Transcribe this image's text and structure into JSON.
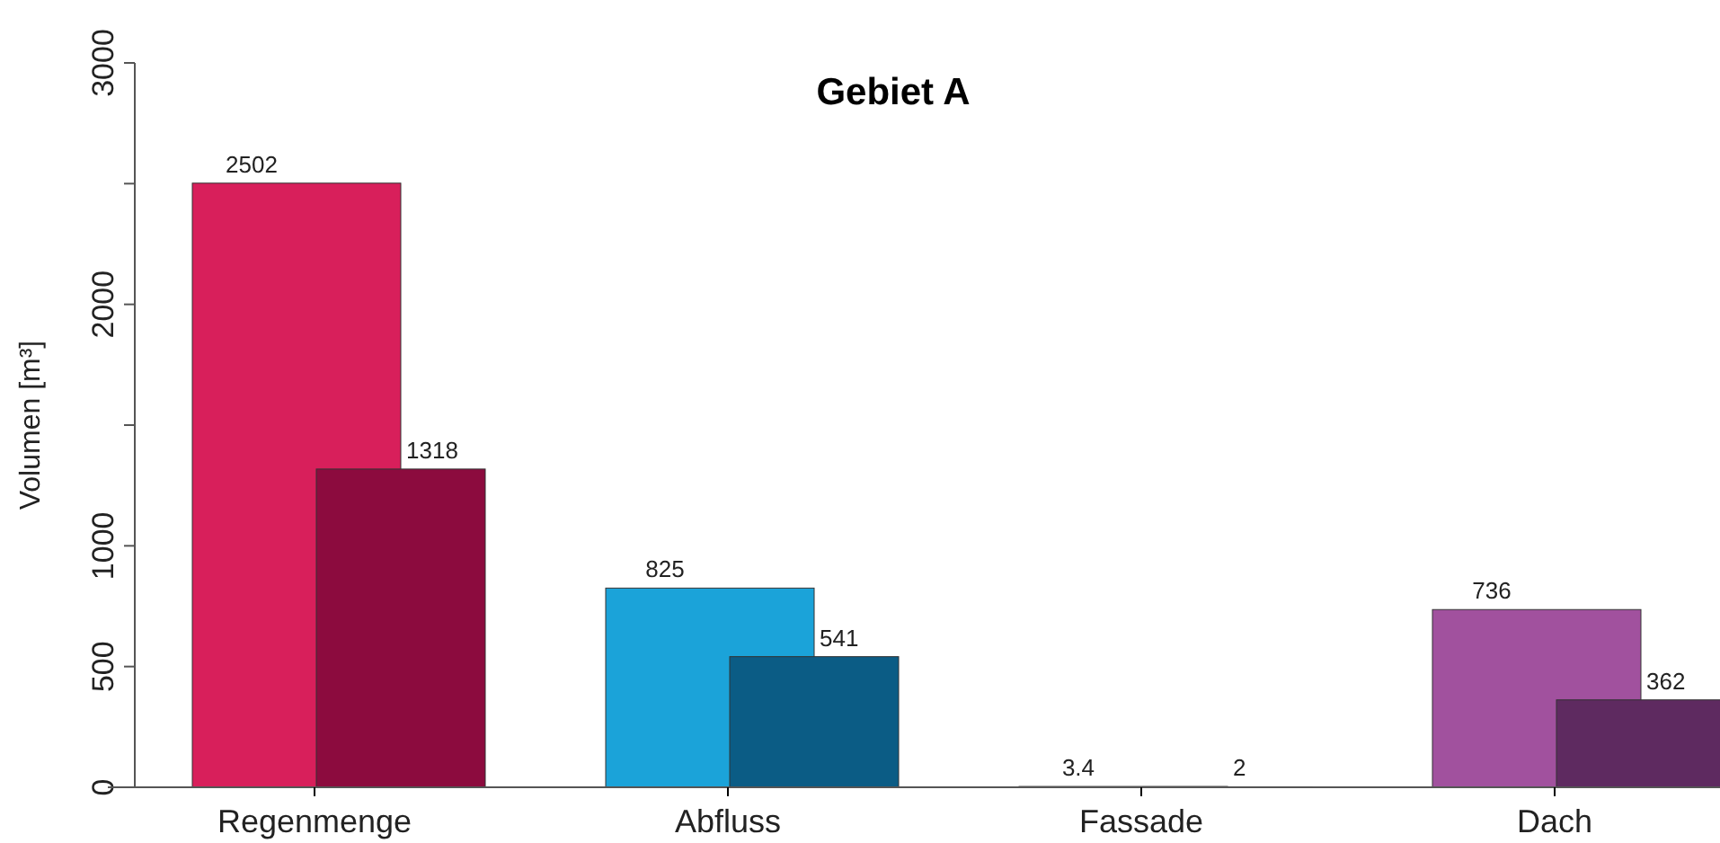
{
  "chart_data": {
    "type": "bar",
    "title": "Gebiet A",
    "ylabel": "Volumen [m³]",
    "categories": [
      "Regenmenge",
      "Abfluss",
      "Fassade",
      "Dach"
    ],
    "series": [
      {
        "values": [
          2502,
          825,
          3.4,
          736
        ],
        "colors": [
          "#d81f5b",
          "#1ba3d9",
          "#7a7a7a",
          "#a1519e"
        ]
      },
      {
        "values": [
          1318,
          541,
          2,
          362
        ],
        "colors": [
          "#8c0b3e",
          "#0b5c85",
          "#555555",
          "#5e2a60"
        ]
      }
    ],
    "ylim": [
      0,
      3000
    ],
    "yticks": [
      0,
      500,
      1000,
      {
        "value": 1500,
        "label": null
      },
      2000,
      {
        "value": 2500,
        "label": null
      },
      3000
    ],
    "data_labels": true
  }
}
